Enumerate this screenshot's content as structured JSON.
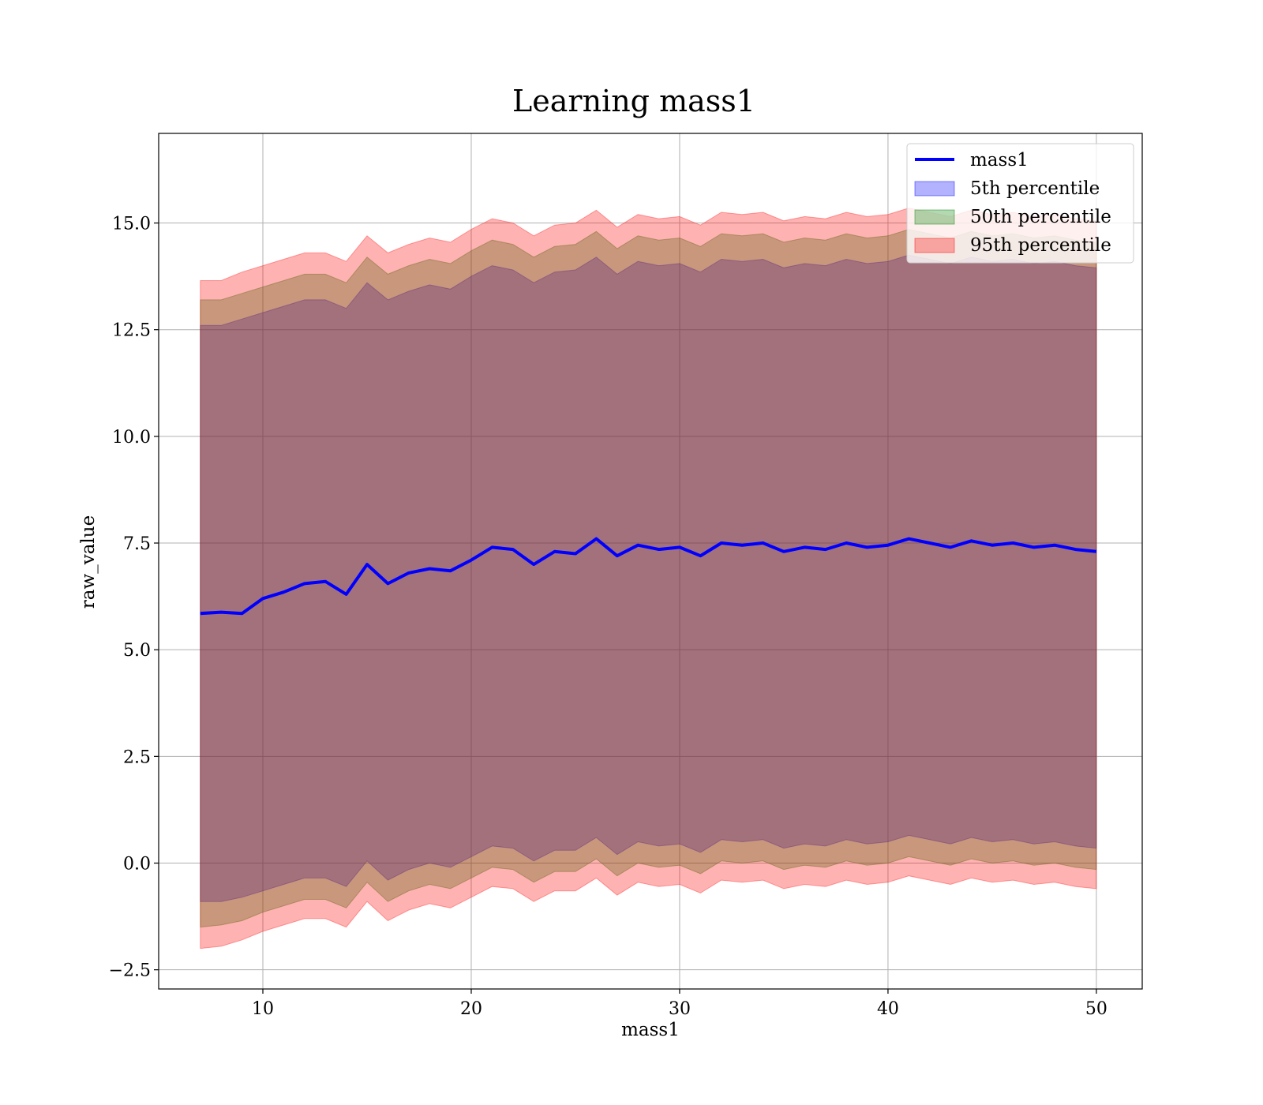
{
  "chart_data": {
    "type": "area",
    "title": "Learning mass1",
    "xlabel": "mass1",
    "ylabel": "raw_value",
    "xlim": [
      5,
      52.2
    ],
    "ylim": [
      -2.95,
      17.1
    ],
    "xticks": [
      10,
      20,
      30,
      40,
      50
    ],
    "xtick_labels": [
      "10",
      "20",
      "30",
      "40",
      "50"
    ],
    "yticks": [
      -2.5,
      0.0,
      2.5,
      5.0,
      7.5,
      10.0,
      12.5,
      15.0
    ],
    "ytick_labels": [
      "−2.5",
      "0.0",
      "2.5",
      "5.0",
      "7.5",
      "10.0",
      "12.5",
      "15.0"
    ],
    "grid": true,
    "legend_position": "top-right",
    "x": [
      7.0,
      8.0,
      9.0,
      10.0,
      11.0,
      12.0,
      13.0,
      14.0,
      15.0,
      16.0,
      17.0,
      18.0,
      19.0,
      20.0,
      21.0,
      22.0,
      23.0,
      24.0,
      25.0,
      26.0,
      27.0,
      28.0,
      29.0,
      30.0,
      31.0,
      32.0,
      33.0,
      34.0,
      35.0,
      36.0,
      37.0,
      38.0,
      39.0,
      40.0,
      41.0,
      42.0,
      43.0,
      44.0,
      45.0,
      46.0,
      47.0,
      48.0,
      49.0,
      50.0
    ],
    "series": [
      {
        "name": "mass1",
        "kind": "line",
        "color": "#0000ff",
        "values": [
          5.85,
          5.88,
          5.85,
          6.2,
          6.35,
          6.55,
          6.6,
          6.3,
          7.0,
          6.55,
          6.8,
          6.9,
          6.85,
          7.1,
          7.4,
          7.35,
          7.0,
          7.3,
          7.25,
          7.6,
          7.2,
          7.45,
          7.35,
          7.4,
          7.2,
          7.5,
          7.45,
          7.5,
          7.3,
          7.4,
          7.35,
          7.5,
          7.4,
          7.45,
          7.6,
          7.5,
          7.4,
          7.55,
          7.45,
          7.5,
          7.4,
          7.45,
          7.35,
          7.3
        ]
      },
      {
        "name": "5th percentile",
        "kind": "band",
        "color": "#0000ff",
        "lower": [
          -0.9,
          -0.9,
          -0.8,
          -0.65,
          -0.5,
          -0.35,
          -0.35,
          -0.55,
          0.05,
          -0.4,
          -0.15,
          0.0,
          -0.1,
          0.15,
          0.4,
          0.35,
          0.05,
          0.3,
          0.3,
          0.6,
          0.2,
          0.5,
          0.4,
          0.45,
          0.25,
          0.55,
          0.5,
          0.55,
          0.35,
          0.45,
          0.4,
          0.55,
          0.45,
          0.5,
          0.65,
          0.55,
          0.45,
          0.6,
          0.5,
          0.55,
          0.45,
          0.5,
          0.4,
          0.35
        ],
        "upper": [
          12.6,
          12.6,
          12.75,
          12.9,
          13.05,
          13.2,
          13.2,
          13.0,
          13.6,
          13.2,
          13.4,
          13.55,
          13.45,
          13.75,
          14.0,
          13.9,
          13.6,
          13.85,
          13.9,
          14.2,
          13.8,
          14.1,
          14.0,
          14.05,
          13.85,
          14.15,
          14.1,
          14.15,
          13.95,
          14.05,
          14.0,
          14.15,
          14.05,
          14.1,
          14.25,
          14.15,
          14.05,
          14.2,
          14.1,
          14.15,
          14.05,
          14.1,
          14.0,
          13.95
        ]
      },
      {
        "name": "50th percentile",
        "kind": "band",
        "color": "#008000",
        "lower": [
          -1.5,
          -1.45,
          -1.35,
          -1.15,
          -1.0,
          -0.85,
          -0.85,
          -1.05,
          -0.45,
          -0.9,
          -0.65,
          -0.5,
          -0.6,
          -0.35,
          -0.1,
          -0.15,
          -0.45,
          -0.2,
          -0.2,
          0.1,
          -0.3,
          0.0,
          -0.1,
          -0.05,
          -0.25,
          0.05,
          0.0,
          0.05,
          -0.15,
          -0.05,
          -0.1,
          0.05,
          -0.05,
          0.0,
          0.15,
          0.05,
          -0.05,
          0.1,
          0.0,
          0.05,
          -0.05,
          0.0,
          -0.1,
          -0.15
        ],
        "upper": [
          13.2,
          13.2,
          13.35,
          13.5,
          13.65,
          13.8,
          13.8,
          13.6,
          14.2,
          13.8,
          14.0,
          14.15,
          14.05,
          14.35,
          14.6,
          14.5,
          14.2,
          14.45,
          14.5,
          14.8,
          14.4,
          14.7,
          14.6,
          14.65,
          14.45,
          14.75,
          14.7,
          14.75,
          14.55,
          14.65,
          14.6,
          14.75,
          14.65,
          14.7,
          14.85,
          14.75,
          14.65,
          14.8,
          14.7,
          14.75,
          14.65,
          14.7,
          14.6,
          14.55
        ]
      },
      {
        "name": "95th percentile",
        "kind": "band",
        "color": "#ff0000",
        "lower": [
          -2.0,
          -1.95,
          -1.8,
          -1.6,
          -1.45,
          -1.3,
          -1.3,
          -1.5,
          -0.9,
          -1.35,
          -1.1,
          -0.95,
          -1.05,
          -0.8,
          -0.55,
          -0.6,
          -0.9,
          -0.65,
          -0.65,
          -0.35,
          -0.75,
          -0.45,
          -0.55,
          -0.5,
          -0.7,
          -0.4,
          -0.45,
          -0.4,
          -0.6,
          -0.5,
          -0.55,
          -0.4,
          -0.5,
          -0.45,
          -0.3,
          -0.4,
          -0.5,
          -0.35,
          -0.45,
          -0.4,
          -0.5,
          -0.45,
          -0.55,
          -0.6
        ],
        "upper": [
          13.65,
          13.65,
          13.85,
          14.0,
          14.15,
          14.3,
          14.3,
          14.1,
          14.7,
          14.3,
          14.5,
          14.65,
          14.55,
          14.85,
          15.1,
          15.0,
          14.7,
          14.95,
          15.0,
          15.3,
          14.9,
          15.2,
          15.1,
          15.15,
          14.95,
          15.25,
          15.2,
          15.25,
          15.05,
          15.15,
          15.1,
          15.25,
          15.15,
          15.2,
          15.35,
          15.25,
          15.15,
          15.3,
          15.2,
          15.25,
          15.15,
          15.2,
          15.1,
          15.05
        ]
      }
    ]
  }
}
